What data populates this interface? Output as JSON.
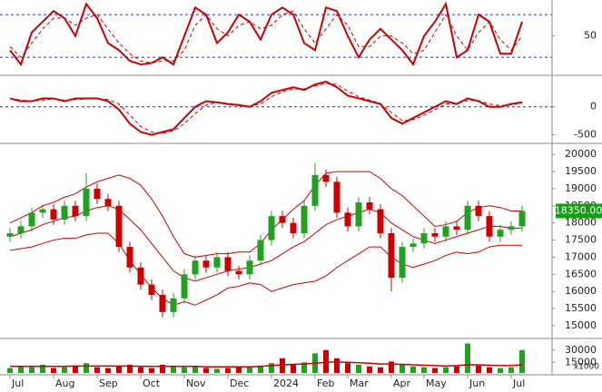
{
  "chart_data": [
    {
      "type": "line",
      "ylim": [
        -4,
        98
      ],
      "yticks": [
        50
      ],
      "levels": [
        20,
        80
      ],
      "series": [
        {
          "color": "#cc0000",
          "style": "solid",
          "values": [
            30,
            10,
            55,
            70,
            85,
            75,
            50,
            95,
            75,
            40,
            30,
            15,
            10,
            12,
            20,
            10,
            50,
            90,
            80,
            40,
            55,
            80,
            70,
            45,
            80,
            90,
            80,
            40,
            30,
            90,
            85,
            50,
            20,
            45,
            60,
            45,
            30,
            10,
            50,
            70,
            95,
            20,
            30,
            80,
            70,
            25,
            25,
            70
          ]
        },
        {
          "color": "#cc0000",
          "style": "dashed",
          "values": [
            35,
            20,
            40,
            60,
            75,
            75,
            65,
            75,
            80,
            60,
            40,
            25,
            15,
            12,
            15,
            15,
            30,
            65,
            80,
            60,
            50,
            65,
            70,
            60,
            65,
            80,
            85,
            60,
            40,
            60,
            80,
            65,
            35,
            35,
            50,
            50,
            40,
            25,
            30,
            55,
            80,
            50,
            30,
            55,
            70,
            45,
            30,
            50
          ]
        }
      ]
    },
    {
      "type": "line",
      "ylim": [
        -620,
        530
      ],
      "yticks": [
        0,
        -500
      ],
      "levels": [
        0
      ],
      "series": [
        {
          "color": "#cc0000",
          "style": "solid",
          "values": [
            150,
            100,
            100,
            150,
            150,
            100,
            150,
            150,
            150,
            100,
            -50,
            -300,
            -450,
            -500,
            -450,
            -400,
            -200,
            0,
            100,
            80,
            50,
            30,
            0,
            100,
            250,
            300,
            350,
            300,
            400,
            450,
            350,
            200,
            150,
            100,
            50,
            -200,
            -300,
            -200,
            -100,
            0,
            100,
            50,
            150,
            100,
            0,
            0,
            50,
            80
          ]
        },
        {
          "color": "#cc0000",
          "style": "dashed",
          "values": [
            150,
            120,
            100,
            120,
            140,
            120,
            130,
            140,
            150,
            130,
            50,
            -150,
            -350,
            -450,
            -470,
            -430,
            -300,
            -120,
            30,
            80,
            60,
            40,
            10,
            50,
            180,
            270,
            320,
            320,
            370,
            420,
            400,
            280,
            180,
            120,
            60,
            -100,
            -250,
            -230,
            -150,
            -50,
            50,
            60,
            110,
            110,
            50,
            20,
            40,
            70
          ]
        }
      ]
    },
    {
      "type": "candlestick",
      "ylim": [
        14680,
        20270
      ],
      "yticks": [
        15000,
        15500,
        16000,
        16500,
        17000,
        17500,
        18000,
        18500,
        19000,
        19500,
        20000
      ],
      "up_color": "#22a022",
      "down_color": "#cc0000",
      "open": [
        17600,
        17700,
        17900,
        18300,
        18400,
        18100,
        18500,
        18200,
        19000,
        18700,
        18500,
        17300,
        16700,
        16200,
        15900,
        15400,
        15800,
        16500,
        16900,
        16700,
        17000,
        16600,
        16500,
        16900,
        17500,
        18200,
        18000,
        17700,
        18500,
        19400,
        19200,
        18300,
        17900,
        18600,
        18400,
        17700,
        16400,
        17300,
        17400,
        17700,
        17600,
        17900,
        17800,
        18500,
        18200,
        17600,
        17800,
        17900
      ],
      "high": [
        17850,
        18050,
        18450,
        18550,
        18550,
        18650,
        18650,
        19450,
        19150,
        18850,
        18650,
        17450,
        16850,
        16350,
        16050,
        15950,
        16650,
        17050,
        17050,
        17150,
        17150,
        16750,
        17050,
        17650,
        18350,
        18350,
        18150,
        18650,
        19750,
        19550,
        19350,
        18450,
        18750,
        18750,
        18550,
        17850,
        17450,
        17550,
        17850,
        17850,
        18050,
        18050,
        18650,
        18650,
        18350,
        17950,
        18050,
        18500
      ],
      "low": [
        17450,
        17550,
        17750,
        18150,
        17950,
        17950,
        18050,
        18050,
        18550,
        18350,
        17150,
        16550,
        16050,
        15750,
        15250,
        15250,
        15650,
        16350,
        16550,
        16550,
        16450,
        16350,
        16350,
        16750,
        17350,
        17850,
        17550,
        17550,
        18350,
        19050,
        18150,
        17750,
        17750,
        18250,
        17550,
        16000,
        16250,
        17150,
        17250,
        17450,
        17450,
        17650,
        17650,
        18050,
        17450,
        17450,
        17650,
        17750
      ],
      "close": [
        17700,
        17900,
        18300,
        18400,
        18100,
        18500,
        18200,
        19000,
        18700,
        18500,
        17300,
        16700,
        16200,
        15900,
        15400,
        15800,
        16500,
        16900,
        16700,
        17000,
        16600,
        16500,
        16900,
        17500,
        18200,
        18000,
        17700,
        18500,
        19400,
        19200,
        18300,
        17900,
        18600,
        18400,
        17700,
        16400,
        17300,
        17400,
        17700,
        17600,
        17900,
        17800,
        18500,
        18200,
        17600,
        17800,
        17900,
        18350
      ],
      "current_price": {
        "value": 18350,
        "label": "18350.00"
      },
      "overlays": [
        {
          "color": "#cc0000",
          "values": [
            18000,
            18150,
            18300,
            18500,
            18600,
            18750,
            18850,
            19050,
            19200,
            19300,
            19400,
            19300,
            19100,
            18700,
            18200,
            17600,
            17100,
            17000,
            17050,
            17100,
            17100,
            17150,
            17150,
            17400,
            17800,
            18100,
            18400,
            18650,
            19100,
            19450,
            19500,
            19500,
            19500,
            19500,
            19300,
            19000,
            18800,
            18500,
            18200,
            17900,
            17950,
            18050,
            18300,
            18450,
            18500,
            18450,
            18350,
            18350
          ]
        },
        {
          "color": "#cc0000",
          "values": [
            17600,
            17700,
            17800,
            17950,
            18050,
            18150,
            18200,
            18350,
            18450,
            18500,
            18400,
            18100,
            17800,
            17400,
            17000,
            16600,
            16400,
            16300,
            16400,
            16500,
            16600,
            16650,
            16700,
            16800,
            16900,
            17100,
            17300,
            17450,
            17700,
            17950,
            18100,
            18200,
            18300,
            18400,
            18300,
            18000,
            17800,
            17600,
            17500,
            17400,
            17500,
            17600,
            17700,
            17800,
            17900,
            17900,
            17850,
            17850
          ]
        },
        {
          "color": "#cc0000",
          "values": [
            17200,
            17250,
            17300,
            17400,
            17500,
            17550,
            17550,
            17650,
            17700,
            17700,
            17400,
            16900,
            16500,
            16100,
            15800,
            15600,
            15700,
            15600,
            15750,
            15900,
            16100,
            16150,
            16250,
            16200,
            16000,
            16100,
            16200,
            16250,
            16300,
            16450,
            16700,
            16900,
            17100,
            17300,
            17300,
            17000,
            16800,
            16700,
            16800,
            16900,
            17050,
            17150,
            17100,
            17150,
            17300,
            17350,
            17350,
            17350
          ]
        }
      ]
    },
    {
      "type": "bar",
      "ylim": [
        2000,
        42000
      ],
      "yticks": [
        30000,
        15000
      ],
      "unit": "x1000",
      "categories": [
        "Jul",
        null,
        null,
        null,
        "Aug",
        null,
        null,
        null,
        "Sep",
        null,
        null,
        null,
        "Oct",
        null,
        null,
        null,
        "Nov",
        null,
        null,
        null,
        "Dec",
        null,
        null,
        null,
        "2024",
        null,
        null,
        null,
        "Feb",
        null,
        null,
        "Mar",
        null,
        null,
        null,
        "Apr",
        null,
        null,
        "May",
        null,
        null,
        null,
        "Jun",
        null,
        null,
        null,
        "Jul",
        null
      ],
      "values": [
        8000,
        10000,
        9000,
        12000,
        8000,
        9000,
        11000,
        14000,
        9000,
        8000,
        10000,
        12000,
        9000,
        8000,
        12000,
        10000,
        9000,
        11000,
        8000,
        7000,
        8000,
        9000,
        10000,
        11000,
        14000,
        20000,
        12000,
        15000,
        26000,
        30000,
        20000,
        14000,
        12000,
        10000,
        9000,
        16000,
        12000,
        10000,
        9000,
        8000,
        9000,
        10000,
        38000,
        11000,
        9000,
        8000,
        9000,
        30000
      ],
      "ma": {
        "color": "#cc0000",
        "values": [
          10000,
          10000,
          10000,
          10000,
          10000,
          10000,
          10500,
          10500,
          10500,
          10500,
          10500,
          10500,
          10000,
          10000,
          10000,
          10000,
          10000,
          10000,
          9500,
          9500,
          9500,
          9500,
          9500,
          10000,
          11000,
          12000,
          12500,
          13000,
          14000,
          15000,
          15500,
          15000,
          14500,
          14000,
          13000,
          13000,
          12500,
          12000,
          11500,
          11000,
          10500,
          11000,
          12000,
          12000,
          11500,
          11000,
          11000,
          12000
        ]
      }
    }
  ]
}
